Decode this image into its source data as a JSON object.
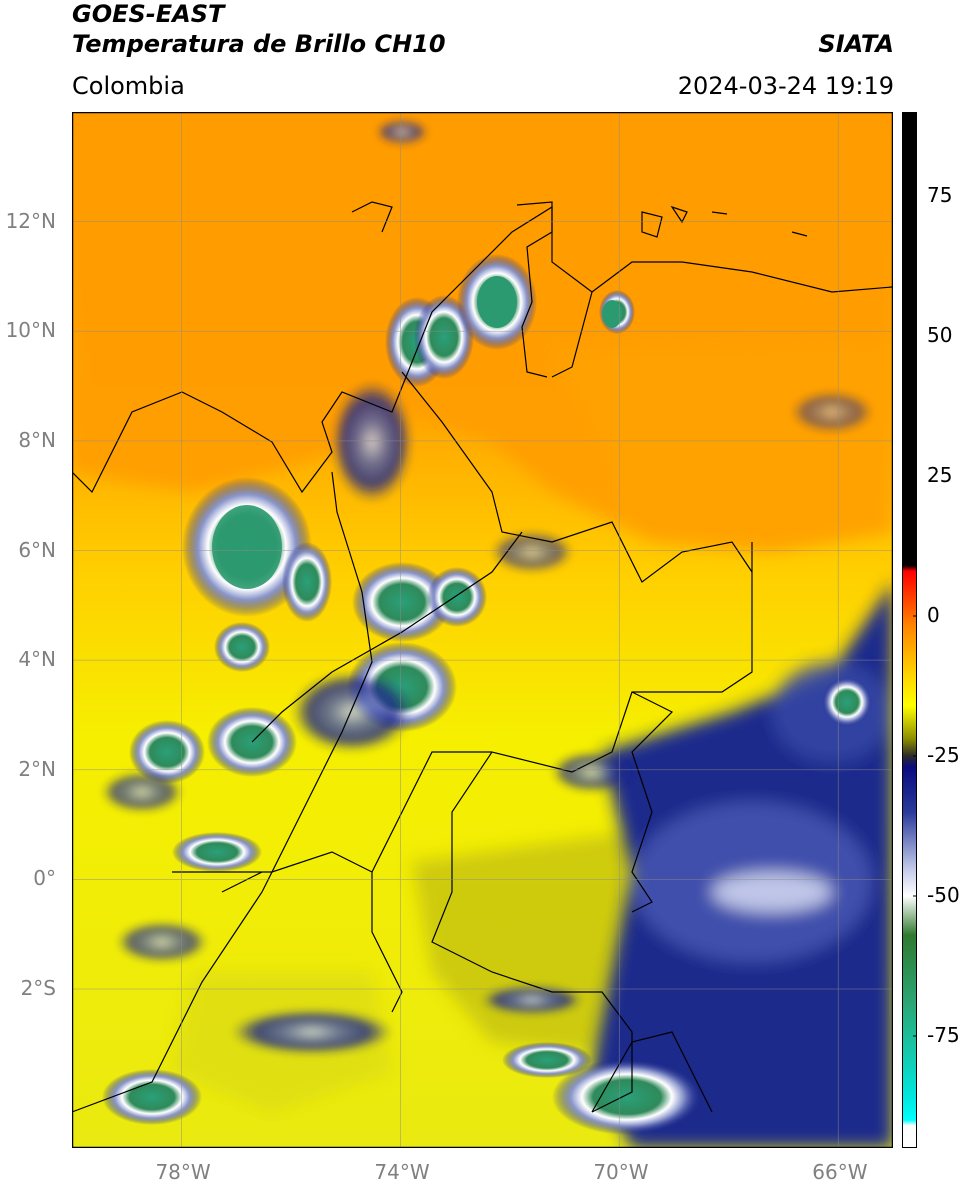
{
  "header": {
    "line1": "GOES-EAST",
    "line2": "Temperatura de Brillo CH10",
    "region": "Colombia",
    "org": "SIATA",
    "datetime": "2024-03-24 19:19"
  },
  "map": {
    "lon_range": [
      -80,
      -65
    ],
    "lat_range": [
      -4.9,
      14
    ],
    "x_ticks": [
      {
        "value": -78,
        "label": "78°W"
      },
      {
        "value": -74,
        "label": "74°W"
      },
      {
        "value": -70,
        "label": "70°W"
      },
      {
        "value": -66,
        "label": "66°W"
      }
    ],
    "y_ticks": [
      {
        "value": 12,
        "label": "12°N"
      },
      {
        "value": 10,
        "label": "10°N"
      },
      {
        "value": 8,
        "label": "8°N"
      },
      {
        "value": 6,
        "label": "6°N"
      },
      {
        "value": 4,
        "label": "4°N"
      },
      {
        "value": 2,
        "label": "2°N"
      },
      {
        "value": 0,
        "label": "0°"
      },
      {
        "value": -2,
        "label": "2°S"
      }
    ],
    "grid": true
  },
  "colorbar": {
    "range": [
      -95,
      90
    ],
    "ticks": [
      {
        "value": 75,
        "label": "75"
      },
      {
        "value": 50,
        "label": "50"
      },
      {
        "value": 25,
        "label": "25"
      },
      {
        "value": 0,
        "label": "0"
      },
      {
        "value": -25,
        "label": "-25"
      },
      {
        "value": -50,
        "label": "-50"
      },
      {
        "value": -75,
        "label": "-75"
      }
    ],
    "stops": [
      {
        "value": 90,
        "color": "#000000"
      },
      {
        "value": 9,
        "color": "#000000"
      },
      {
        "value": 8,
        "color": "#ff0000"
      },
      {
        "value": 3,
        "color": "#ff4400"
      },
      {
        "value": -2,
        "color": "#ff8800"
      },
      {
        "value": -10,
        "color": "#ffd000"
      },
      {
        "value": -16,
        "color": "#ffff00"
      },
      {
        "value": -22,
        "color": "#8c8c00"
      },
      {
        "value": -25,
        "color": "#2a2a2a"
      },
      {
        "value": -27,
        "color": "#0a0a80"
      },
      {
        "value": -35,
        "color": "#2a3a9a"
      },
      {
        "value": -45,
        "color": "#c0c8e8"
      },
      {
        "value": -50,
        "color": "#ffffff"
      },
      {
        "value": -57,
        "color": "#2f7a2f"
      },
      {
        "value": -70,
        "color": "#2aaa7a"
      },
      {
        "value": -86,
        "color": "#00e8e0"
      },
      {
        "value": -90,
        "color": "#00ffff"
      },
      {
        "value": -91,
        "color": "#ffffff"
      },
      {
        "value": -95,
        "color": "#ffffff"
      }
    ]
  }
}
